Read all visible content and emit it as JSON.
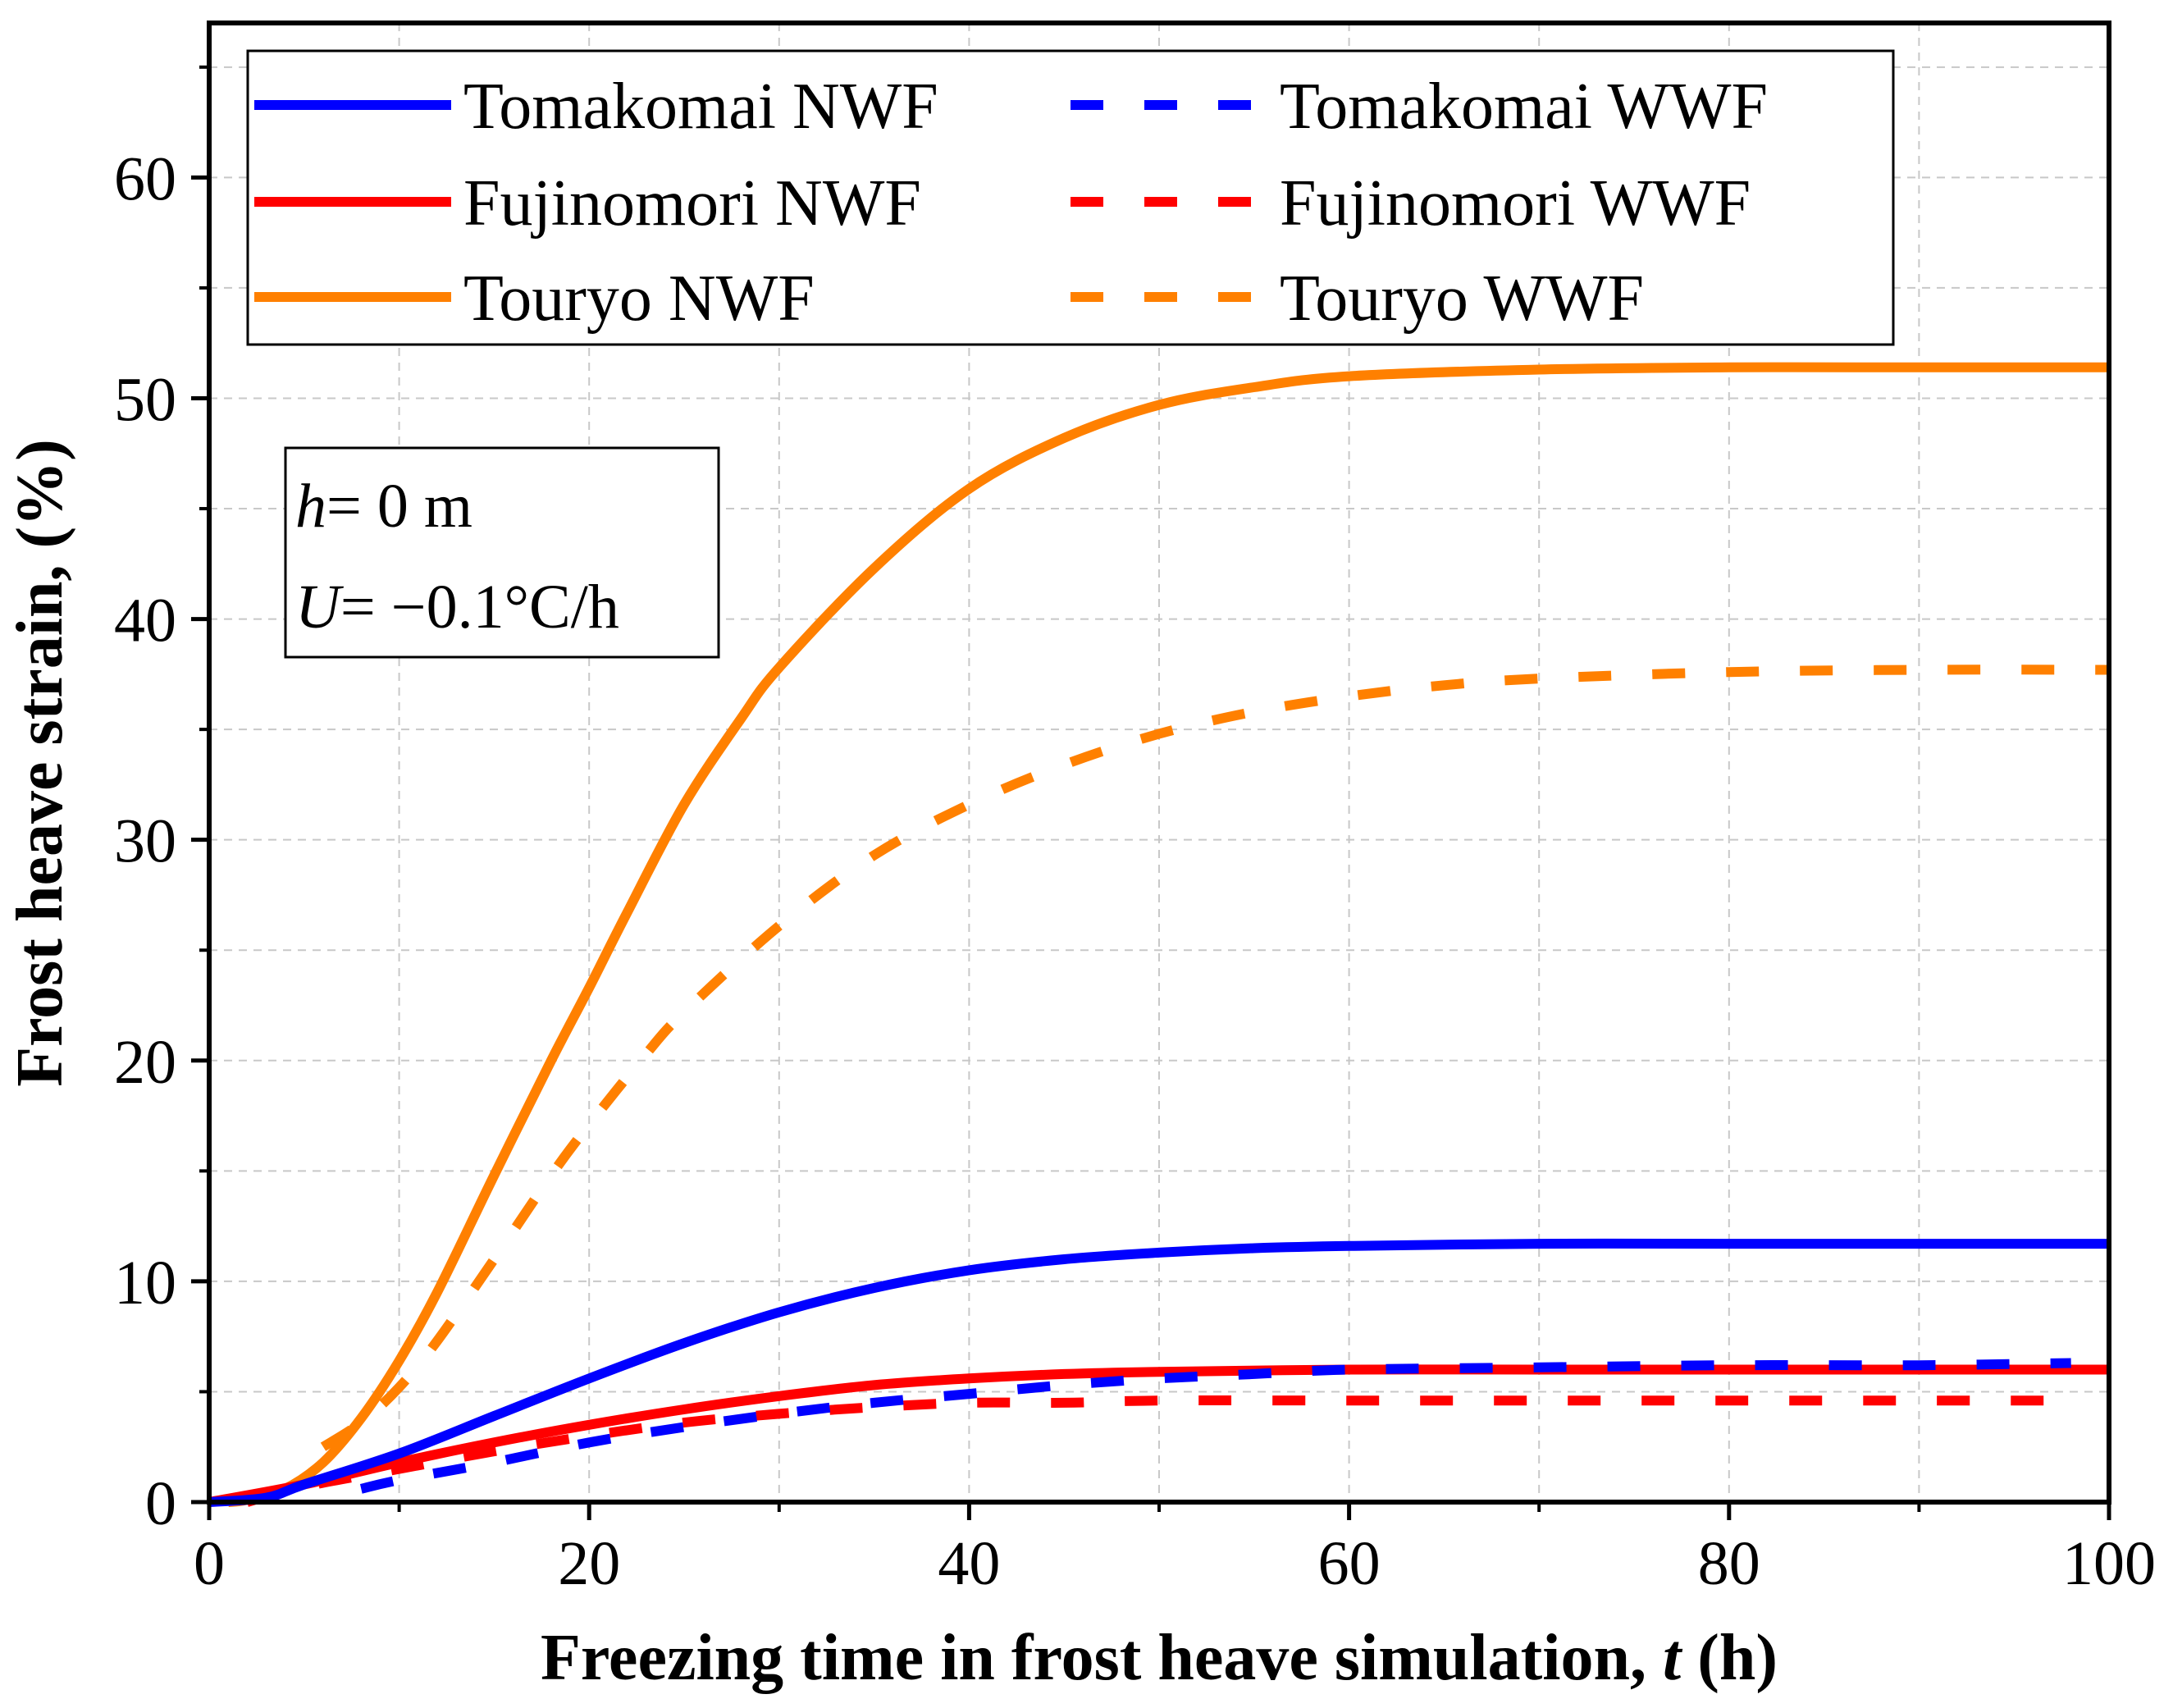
{
  "chart_data": {
    "type": "line",
    "title": "",
    "xlabel_prefix": "Freezing time in frost heave simulation, ",
    "xlabel_var": "t",
    "xlabel_suffix": " (h)",
    "ylabel": "Frost heave strain, (%)",
    "xlim": [
      0,
      100
    ],
    "ylim": [
      0,
      67
    ],
    "xticks": [
      0,
      20,
      40,
      60,
      80,
      100
    ],
    "xtick_labels": [
      "0",
      "20",
      "40",
      "60",
      "80",
      "100"
    ],
    "yticks": [
      0,
      10,
      20,
      30,
      40,
      50,
      60
    ],
    "ytick_labels": [
      "0",
      "10",
      "20",
      "30",
      "40",
      "50",
      "60"
    ],
    "grid": true,
    "legend_position": "top-left",
    "annotation": {
      "line1_var": "h",
      "line1_rest": "= 0 m",
      "line2_var": "U",
      "line2_rest": "= −0.1°C/h"
    },
    "series": [
      {
        "name": "Tomakomai NWF",
        "color": "#0000ff",
        "dash": "solid",
        "x": [
          0,
          3,
          5,
          10,
          15,
          20,
          25,
          30,
          35,
          40,
          45,
          50,
          55,
          60,
          70,
          80,
          90,
          100
        ],
        "y": [
          0,
          0.2,
          0.8,
          2.2,
          3.9,
          5.6,
          7.2,
          8.6,
          9.7,
          10.5,
          11.0,
          11.3,
          11.5,
          11.6,
          11.7,
          11.7,
          11.7,
          11.7
        ]
      },
      {
        "name": "Tomakomai WWF",
        "color": "#0000ff",
        "dash": "dashed",
        "x": [
          8,
          10,
          15,
          20,
          25,
          30,
          35,
          40,
          45,
          50,
          55,
          60,
          70,
          80,
          90,
          98
        ],
        "y": [
          0.6,
          1.0,
          1.8,
          2.7,
          3.4,
          4.0,
          4.5,
          4.9,
          5.3,
          5.6,
          5.8,
          6.0,
          6.1,
          6.2,
          6.2,
          6.3
        ]
      },
      {
        "name": "Fujinomori NWF",
        "color": "#ff0000",
        "dash": "solid",
        "x": [
          0,
          5,
          10,
          15,
          20,
          25,
          30,
          35,
          40,
          45,
          50,
          60,
          70,
          80,
          90,
          100
        ],
        "y": [
          0,
          0.8,
          1.8,
          2.7,
          3.5,
          4.2,
          4.8,
          5.3,
          5.6,
          5.8,
          5.9,
          6.0,
          6.0,
          6.0,
          6.0,
          6.0
        ]
      },
      {
        "name": "Fujinomori WWF",
        "color": "#ff0000",
        "dash": "dashed",
        "x": [
          2,
          5,
          10,
          15,
          20,
          25,
          30,
          35,
          40,
          45,
          50,
          60,
          70,
          80,
          90,
          98
        ],
        "y": [
          0,
          0.7,
          1.5,
          2.3,
          3.0,
          3.6,
          4.0,
          4.3,
          4.5,
          4.5,
          4.6,
          4.6,
          4.6,
          4.6,
          4.6,
          4.6
        ]
      },
      {
        "name": "Touryo NWF",
        "color": "#ff8000",
        "dash": "solid",
        "x": [
          1,
          2,
          4,
          6,
          8,
          10,
          12,
          15,
          18,
          20,
          22,
          25,
          28,
          30,
          35,
          40,
          45,
          50,
          55,
          60,
          70,
          80,
          90,
          100
        ],
        "y": [
          0,
          0.1,
          0.6,
          1.8,
          3.8,
          6.4,
          9.5,
          14.8,
          20.0,
          23.3,
          26.7,
          31.6,
          35.5,
          37.8,
          42.3,
          45.9,
          48.2,
          49.7,
          50.5,
          51.0,
          51.3,
          51.4,
          51.4,
          51.4
        ]
      },
      {
        "name": "Touryo WWF",
        "color": "#ff8000",
        "dash": "dashed",
        "x": [
          6,
          8,
          10,
          12,
          15,
          18,
          20,
          23,
          25,
          30,
          35,
          40,
          45,
          50,
          55,
          60,
          65,
          70,
          80,
          90,
          100
        ],
        "y": [
          2.5,
          3.6,
          5.2,
          7.3,
          11.0,
          14.8,
          17.1,
          20.3,
          22.2,
          26.1,
          29.3,
          31.6,
          33.4,
          34.8,
          35.8,
          36.5,
          37.0,
          37.3,
          37.6,
          37.7,
          37.7
        ]
      }
    ]
  }
}
